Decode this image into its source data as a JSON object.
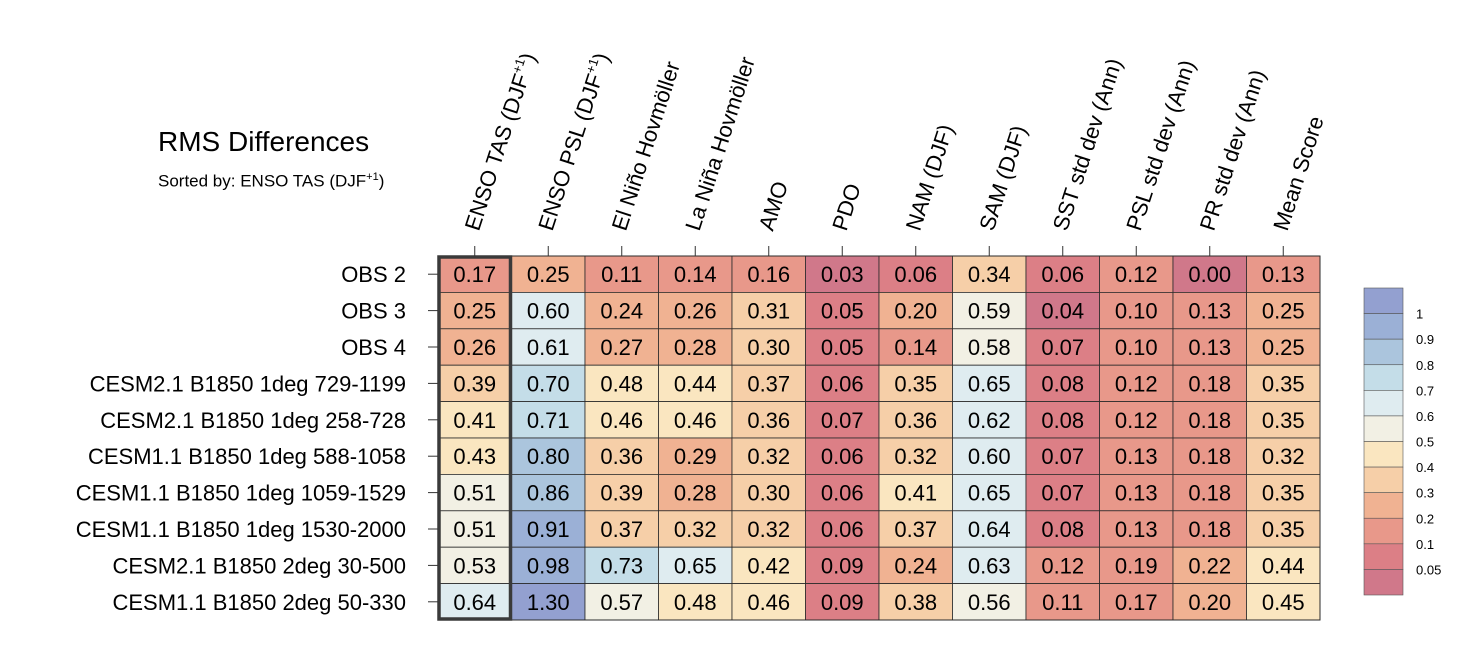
{
  "title": "RMS Differences",
  "subtitle": {
    "prefix": "Sorted by: ENSO TAS (DJF",
    "sup": "+1",
    "suffix": ")"
  },
  "chart_data": {
    "type": "heatmap",
    "columns": [
      {
        "label": "ENSO TAS (DJF",
        "sup": "+1",
        "tail": ")"
      },
      {
        "label": "ENSO PSL (DJF",
        "sup": "+1",
        "tail": ")"
      },
      {
        "label": "El Niño Hovmöller"
      },
      {
        "label": "La Niña Hovmöller"
      },
      {
        "label": "AMO"
      },
      {
        "label": "PDO"
      },
      {
        "label": "NAM (DJF)"
      },
      {
        "label": "SAM (DJF)"
      },
      {
        "label": "SST std dev (Ann)"
      },
      {
        "label": "PSL std dev (Ann)"
      },
      {
        "label": "PR std dev (Ann)"
      },
      {
        "label": "Mean Score"
      }
    ],
    "rows": [
      "OBS 2",
      "OBS 3",
      "OBS 4",
      "CESM2.1 B1850 1deg 729-1199",
      "CESM2.1 B1850 1deg 258-728",
      "CESM1.1 B1850 1deg 588-1058",
      "CESM1.1 B1850 1deg 1059-1529",
      "CESM1.1 B1850 1deg 1530-2000",
      "CESM2.1 B1850 2deg 30-500",
      "CESM1.1 B1850 2deg 50-330"
    ],
    "values": [
      [
        "0.17",
        "0.25",
        "0.11",
        "0.14",
        "0.16",
        "0.03",
        "0.06",
        "0.34",
        "0.06",
        "0.12",
        "0.00",
        "0.13"
      ],
      [
        "0.25",
        "0.60",
        "0.24",
        "0.26",
        "0.31",
        "0.05",
        "0.20",
        "0.59",
        "0.04",
        "0.10",
        "0.13",
        "0.25"
      ],
      [
        "0.26",
        "0.61",
        "0.27",
        "0.28",
        "0.30",
        "0.05",
        "0.14",
        "0.58",
        "0.07",
        "0.10",
        "0.13",
        "0.25"
      ],
      [
        "0.39",
        "0.70",
        "0.48",
        "0.44",
        "0.37",
        "0.06",
        "0.35",
        "0.65",
        "0.08",
        "0.12",
        "0.18",
        "0.35"
      ],
      [
        "0.41",
        "0.71",
        "0.46",
        "0.46",
        "0.36",
        "0.07",
        "0.36",
        "0.62",
        "0.08",
        "0.12",
        "0.18",
        "0.35"
      ],
      [
        "0.43",
        "0.80",
        "0.36",
        "0.29",
        "0.32",
        "0.06",
        "0.32",
        "0.60",
        "0.07",
        "0.13",
        "0.18",
        "0.32"
      ],
      [
        "0.51",
        "0.86",
        "0.39",
        "0.28",
        "0.30",
        "0.06",
        "0.41",
        "0.65",
        "0.07",
        "0.13",
        "0.18",
        "0.35"
      ],
      [
        "0.51",
        "0.91",
        "0.37",
        "0.32",
        "0.32",
        "0.06",
        "0.37",
        "0.64",
        "0.08",
        "0.13",
        "0.18",
        "0.35"
      ],
      [
        "0.53",
        "0.98",
        "0.73",
        "0.65",
        "0.42",
        "0.09",
        "0.24",
        "0.63",
        "0.12",
        "0.19",
        "0.22",
        "0.44"
      ],
      [
        "0.64",
        "1.30",
        "0.57",
        "0.48",
        "0.46",
        "0.09",
        "0.38",
        "0.56",
        "0.11",
        "0.17",
        "0.20",
        "0.45"
      ]
    ],
    "sorted_column": 0,
    "colorbar": {
      "labels": [
        "1",
        "0.9",
        "0.8",
        "0.7",
        "0.6",
        "0.5",
        "0.4",
        "0.3",
        "0.2",
        "0.1",
        "0.05"
      ],
      "levels": [
        0.05,
        0.1,
        0.2,
        0.3,
        0.4,
        0.5,
        0.6,
        0.7,
        0.8,
        0.9,
        1
      ],
      "colors": [
        "#d0788a",
        "#dc7f86",
        "#e8988a",
        "#f0b292",
        "#f6cfa8",
        "#fae6c0",
        "#f2f0e4",
        "#dfecf0",
        "#c4dde8",
        "#abc5dd",
        "#9bb0d6",
        "#93a0d0"
      ]
    }
  }
}
